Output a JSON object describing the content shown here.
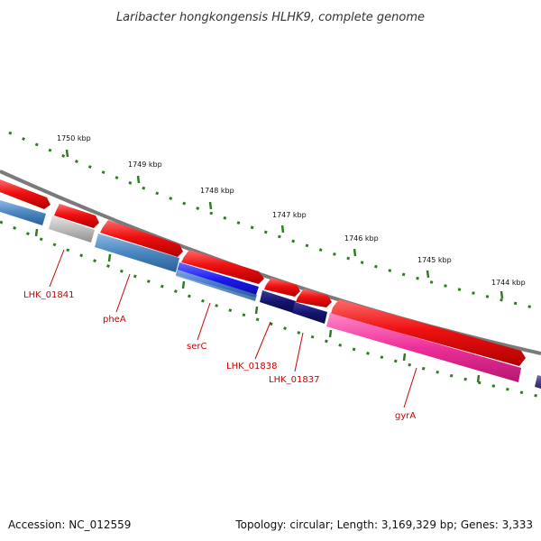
{
  "title": "Laribacter hongkongensis HLHK9, complete genome",
  "footer": {
    "accession": "Accession: NC_012559",
    "summary": "Topology: circular; Length: 3,169,329 bp; Genes: 3,333"
  },
  "ticks": [
    "1750 kbp",
    "1749 kbp",
    "1748 kbp",
    "1747 kbp",
    "1746 kbp",
    "1745 kbp",
    "1744 kbp"
  ],
  "gene_labels": [
    "LHK_01841",
    "pheA",
    "serC",
    "LHK_01838",
    "LHK_01837",
    "gyrA"
  ],
  "colors": {
    "forward_cds": "#ee1111",
    "backbone": "#888888",
    "tick": "#2e7d1f",
    "label": "#cc0000",
    "steel_blue": "#4a86c0",
    "grey": "#bbbbbb",
    "blue": "#1a1aee",
    "navy": "#141470",
    "magenta": "#ee2f9a",
    "purple": "#4a3f8a"
  }
}
